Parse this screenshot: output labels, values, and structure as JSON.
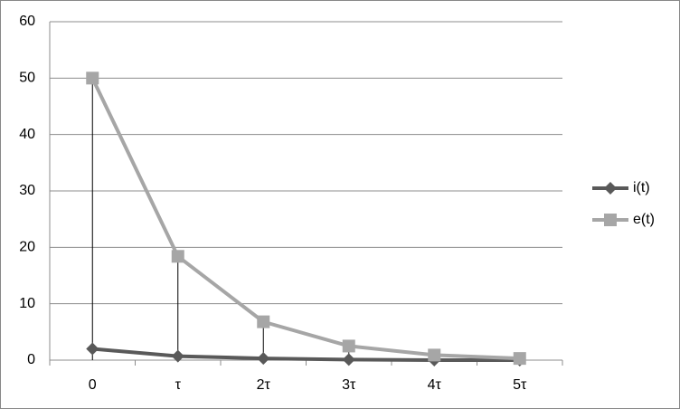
{
  "chart_data": {
    "type": "line",
    "categories": [
      "0",
      "τ",
      "2τ",
      "3τ",
      "4τ",
      "5τ"
    ],
    "series": [
      {
        "name": "i(t)",
        "color": "#595959",
        "marker": "diamond",
        "values": [
          2,
          0.7,
          0.3,
          0.1,
          0,
          0
        ]
      },
      {
        "name": "e(t)",
        "color": "#a6a6a6",
        "marker": "square",
        "values": [
          50,
          18.4,
          6.8,
          2.5,
          0.9,
          0.3
        ]
      }
    ],
    "ylim": [
      0,
      60
    ],
    "yticks": [
      0,
      10,
      20,
      30,
      40,
      50,
      60
    ],
    "grid": true,
    "drop_lines": true,
    "legend": "right"
  }
}
